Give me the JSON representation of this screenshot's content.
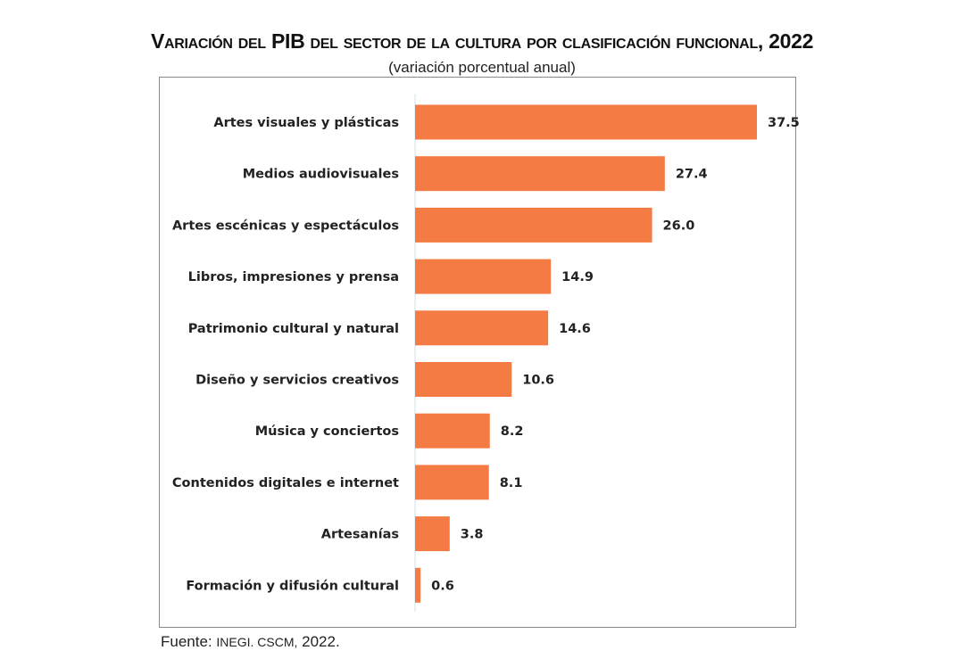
{
  "chart_data": {
    "type": "bar",
    "orientation": "horizontal",
    "title": "Variación del PIB del sector de la cultura por clasificación funcional, 2022",
    "subtitle": "(variación porcentual anual)",
    "categories": [
      "Artes visuales y plásticas",
      "Medios audiovisuales",
      "Artes escénicas y espectáculos",
      "Libros, impresiones y prensa",
      "Patrimonio cultural y natural",
      "Diseño y servicios creativos",
      "Música y conciertos",
      "Contenidos digitales e internet",
      "Artesanías",
      "Formación y difusión cultural"
    ],
    "values": [
      37.5,
      27.4,
      26.0,
      14.9,
      14.6,
      10.6,
      8.2,
      8.1,
      3.8,
      0.6
    ],
    "value_labels": [
      "37.5",
      "27.4",
      "26.0",
      "14.9",
      "14.6",
      "10.6",
      "8.2",
      "8.1",
      "3.8",
      "0.6"
    ],
    "xlabel": "",
    "ylabel": "",
    "xlim": [
      0,
      40
    ],
    "grid": false,
    "bar_color": "#F47B43"
  },
  "source": {
    "label": "Fuente:",
    "org": "INEGI. CSCM,",
    "year": "2022."
  }
}
